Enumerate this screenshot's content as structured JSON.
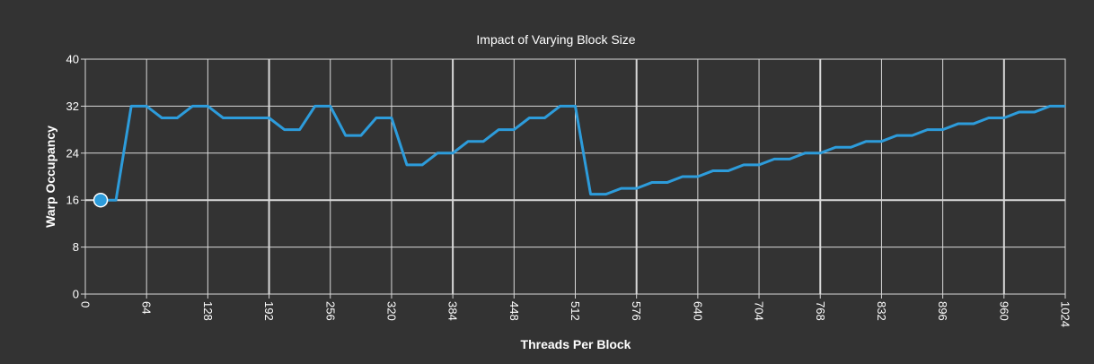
{
  "chart_data": {
    "type": "line",
    "title": "Impact of Varying Block Size",
    "xlabel": "Threads Per Block",
    "ylabel": "Warp Occupancy",
    "xlim": [
      0,
      1024
    ],
    "ylim": [
      0,
      40
    ],
    "xticks": [
      0,
      64,
      128,
      192,
      256,
      320,
      384,
      448,
      512,
      576,
      640,
      704,
      768,
      832,
      896,
      960,
      1024
    ],
    "yticks": [
      0,
      8,
      16,
      24,
      32,
      40
    ],
    "grid": true,
    "line_color": "#2d9cdb",
    "background_color": "#333333",
    "grid_color": "#d9d9d9",
    "highlight_point": {
      "x": 16,
      "y": 16
    },
    "series": [
      {
        "x": [
          16,
          32,
          48,
          64,
          80,
          96,
          112,
          128,
          144,
          160,
          176,
          192,
          208,
          224,
          240,
          256,
          272,
          288,
          304,
          320,
          336,
          352,
          368,
          384,
          400,
          416,
          432,
          448,
          464,
          480,
          496,
          512,
          528,
          544,
          560,
          576,
          592,
          608,
          624,
          640,
          656,
          672,
          688,
          704,
          720,
          736,
          752,
          768,
          784,
          800,
          816,
          832,
          848,
          864,
          880,
          896,
          912,
          928,
          944,
          960,
          976,
          992,
          1008,
          1024
        ],
        "values": [
          16,
          16,
          32,
          32,
          30,
          30,
          32,
          32,
          30,
          30,
          30,
          30,
          28,
          28,
          32,
          32,
          27,
          27,
          30,
          30,
          22,
          22,
          24,
          24,
          26,
          26,
          28,
          28,
          30,
          30,
          32,
          32,
          17,
          17,
          18,
          18,
          19,
          19,
          20,
          20,
          21,
          21,
          22,
          22,
          23,
          23,
          24,
          24,
          25,
          25,
          26,
          26,
          27,
          27,
          28,
          28,
          29,
          29,
          30,
          30,
          31,
          31,
          32,
          32
        ]
      }
    ]
  }
}
